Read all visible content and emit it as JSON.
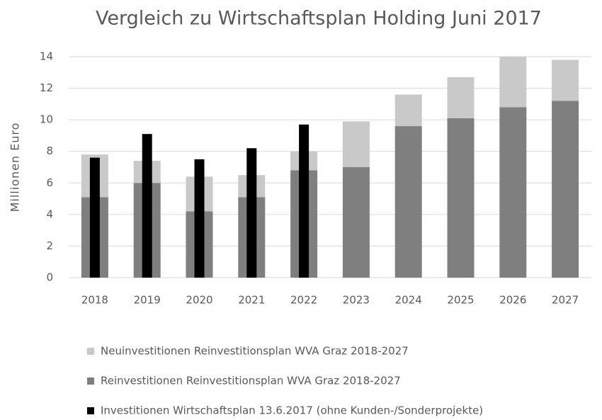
{
  "chart_data": {
    "type": "bar",
    "stacked": true,
    "title": "Vergleich zu Wirtschaftsplan Holding Juni 2017",
    "y_label": "Millionen Euro",
    "categories": [
      "2018",
      "2019",
      "2020",
      "2021",
      "2022",
      "2023",
      "2024",
      "2025",
      "2026",
      "2027"
    ],
    "series": [
      {
        "name": "Neuinvestitionen Reinvestitionsplan WVA Graz 2018-2027",
        "color": "#c9c9c9",
        "stack": true,
        "values": [
          2.7,
          1.4,
          2.2,
          1.4,
          1.2,
          2.9,
          2.0,
          2.6,
          3.2,
          2.6
        ]
      },
      {
        "name": "Reinvestitionen Reinvestitionsplan WVA Graz 2018-2027",
        "color": "#7f7f7f",
        "stack": true,
        "values": [
          5.1,
          6.0,
          4.2,
          5.1,
          6.8,
          7.0,
          9.6,
          10.1,
          10.8,
          11.2
        ]
      },
      {
        "name": "Investitionen Wirtschaftsplan 13.6.2017 (ohne Kunden-/Sonderprojekte)",
        "color": "#000000",
        "stack": false,
        "values": [
          7.6,
          9.1,
          7.5,
          8.2,
          9.7,
          null,
          null,
          null,
          null,
          null
        ]
      }
    ],
    "ylim": [
      0,
      14
    ],
    "yticks": [
      0,
      2,
      4,
      6,
      8,
      10,
      12,
      14
    ],
    "grid": true
  }
}
